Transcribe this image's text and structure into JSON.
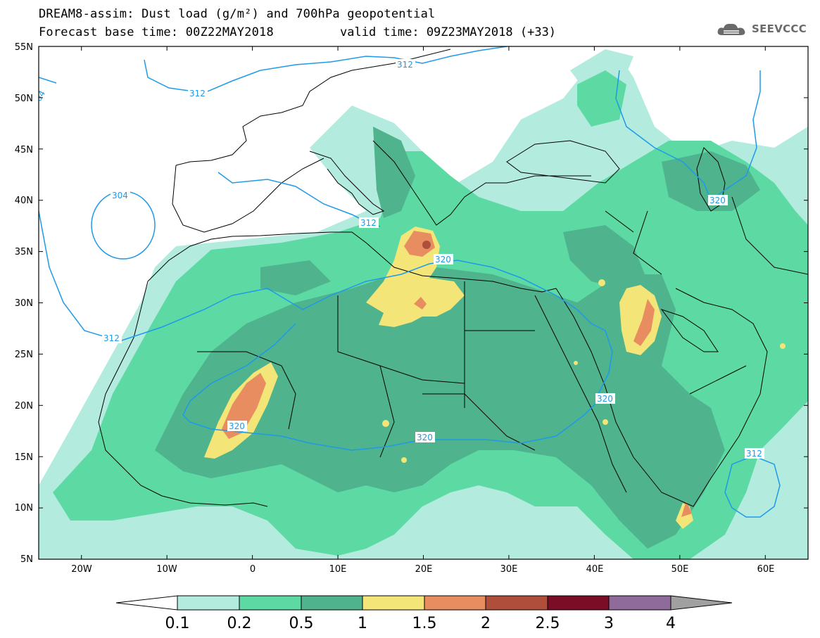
{
  "title": {
    "line1": "DREAM8-assim: Dust load (g/m²) and 700hPa geopotential",
    "line2": "Forecast base time: 00Z22MAY2018",
    "valid": "valid time: 09Z23MAY2018 (+33)"
  },
  "logo": {
    "text": "SEEVCCC",
    "icon": "cloud-icon"
  },
  "map": {
    "lon_range": [
      -25,
      65
    ],
    "lat_range": [
      5,
      55
    ],
    "lat_ticks": [
      "55N",
      "50N",
      "45N",
      "40N",
      "35N",
      "30N",
      "25N",
      "20N",
      "15N",
      "10N",
      "5N"
    ],
    "lon_ticks": [
      "20W",
      "10W",
      "0",
      "10E",
      "20E",
      "30E",
      "40E",
      "50E",
      "60E"
    ],
    "contour_labels": [
      "312",
      "312",
      "312",
      "312",
      "320",
      "320",
      "320",
      "320",
      "320",
      "304",
      "312",
      "04"
    ],
    "colors": {
      "level_0_1": "#b3ecdf",
      "level_0_2": "#5ddaa4",
      "level_0_5": "#4fb38d",
      "level_1": "#f3e577",
      "level_1_5": "#e88d60",
      "level_2": "#b04e3c",
      "contour": "#1f9ae8",
      "coast": "#000000"
    }
  },
  "colorbar": {
    "labels": [
      "0.1",
      "0.2",
      "0.5",
      "1",
      "1.5",
      "2",
      "2.5",
      "3",
      "4"
    ],
    "colors": [
      "#ffffff",
      "#b3ecdf",
      "#5ddaa4",
      "#4fb38d",
      "#f3e577",
      "#e88d60",
      "#b04e3c",
      "#7c0d26",
      "#8f6b9c",
      "#a0a0a0"
    ]
  }
}
